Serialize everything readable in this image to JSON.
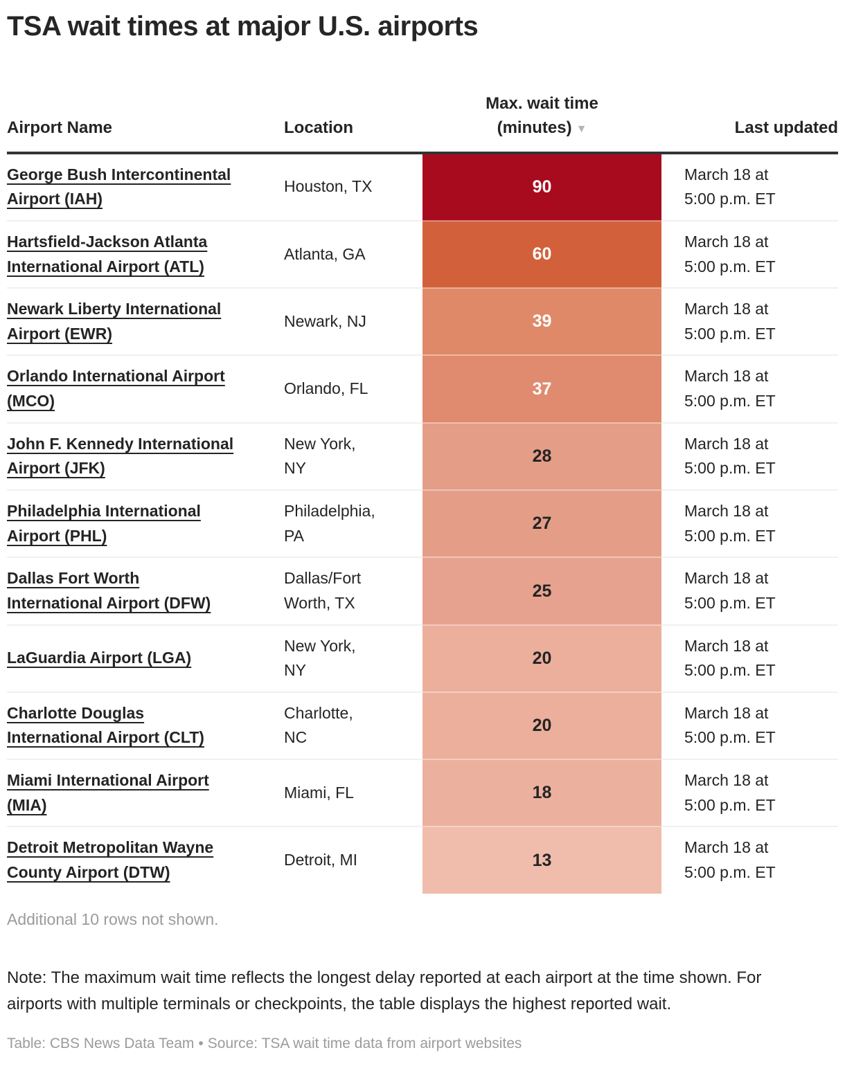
{
  "title": "TSA wait times at major U.S. airports",
  "header": {
    "airport": "Airport Name",
    "location": "Location",
    "max_wait_line1": "Max. wait time",
    "max_wait_line2": "(minutes)",
    "sort_arrow": "▼",
    "updated": "Last updated"
  },
  "chart_data": {
    "type": "table",
    "title": "TSA wait times at major U.S. airports",
    "columns": [
      "Airport Name",
      "Location",
      "Max. wait time (minutes)",
      "Last updated"
    ],
    "sort": {
      "column": "Max. wait time (minutes)",
      "direction": "descending"
    },
    "color_scale": {
      "min_value": 13,
      "max_value": 90,
      "min_color": "#F0BCAC",
      "max_color": "#A80B1E"
    },
    "rows": [
      {
        "airport": "George Bush Intercontinental Airport (IAH)",
        "location": "Houston, TX",
        "max_wait_minutes": 90,
        "last_updated": "March 18 at 5:00 p.m. ET",
        "cell_color": "#A80B1E",
        "value_text_color": "#FFFFFF"
      },
      {
        "airport": "Hartsfield-Jackson Atlanta International Airport (ATL)",
        "location": "Atlanta, GA",
        "max_wait_minutes": 60,
        "last_updated": "March 18 at 5:00 p.m. ET",
        "cell_color": "#D2613B",
        "value_text_color": "#FFFFFF"
      },
      {
        "airport": "Newark Liberty International Airport (EWR)",
        "location": "Newark, NJ",
        "max_wait_minutes": 39,
        "last_updated": "March 18 at 5:00 p.m. ET",
        "cell_color": "#DF8969",
        "value_text_color": "#FFFFFF"
      },
      {
        "airport": "Orlando International Airport (MCO)",
        "location": "Orlando, FL",
        "max_wait_minutes": 37,
        "last_updated": "March 18 at 5:00 p.m. ET",
        "cell_color": "#E08B6F",
        "value_text_color": "#FFFFFF"
      },
      {
        "airport": "John F. Kennedy International Airport (JFK)",
        "location": "New York, NY",
        "max_wait_minutes": 28,
        "last_updated": "March 18 at 5:00 p.m. ET",
        "cell_color": "#E49D87",
        "value_text_color": "#242424"
      },
      {
        "airport": "Philadelphia International Airport (PHL)",
        "location": "Philadelphia, PA",
        "max_wait_minutes": 27,
        "last_updated": "March 18 at 5:00 p.m. ET",
        "cell_color": "#E49E88",
        "value_text_color": "#242424"
      },
      {
        "airport": "Dallas Fort Worth International Airport (DFW)",
        "location": "Dallas/Fort Worth, TX",
        "max_wait_minutes": 25,
        "last_updated": "March 18 at 5:00 p.m. ET",
        "cell_color": "#E6A28E",
        "value_text_color": "#242424"
      },
      {
        "airport": "LaGuardia Airport (LGA)",
        "location": "New York, NY",
        "max_wait_minutes": 20,
        "last_updated": "March 18 at 5:00 p.m. ET",
        "cell_color": "#EBAF9C",
        "value_text_color": "#242424"
      },
      {
        "airport": "Charlotte Douglas International Airport (CLT)",
        "location": "Charlotte, NC",
        "max_wait_minutes": 20,
        "last_updated": "March 18 at 5:00 p.m. ET",
        "cell_color": "#EBAF9C",
        "value_text_color": "#242424"
      },
      {
        "airport": "Miami International Airport (MIA)",
        "location": "Miami, FL",
        "max_wait_minutes": 18,
        "last_updated": "March 18 at 5:00 p.m. ET",
        "cell_color": "#ECB19E",
        "value_text_color": "#242424"
      },
      {
        "airport": "Detroit Metropolitan Wayne County Airport (DTW)",
        "location": "Detroit, MI",
        "max_wait_minutes": 13,
        "last_updated": "March 18 at 5:00 p.m. ET",
        "cell_color": "#F0BCAC",
        "value_text_color": "#242424"
      }
    ]
  },
  "footer": {
    "additional": "Additional 10 rows not shown.",
    "note": "Note: The maximum wait time reflects the longest delay reported at each airport at the time shown. For airports with multiple terminals or checkpoints, the table displays the highest reported wait.",
    "credit_table": "Table: CBS News Data Team",
    "credit_separator": "•",
    "credit_source": "Source: TSA wait time data from airport websites"
  },
  "colors": {
    "header_rule": "#333333",
    "body_text": "#242424",
    "muted_text": "#9B9B9B"
  }
}
